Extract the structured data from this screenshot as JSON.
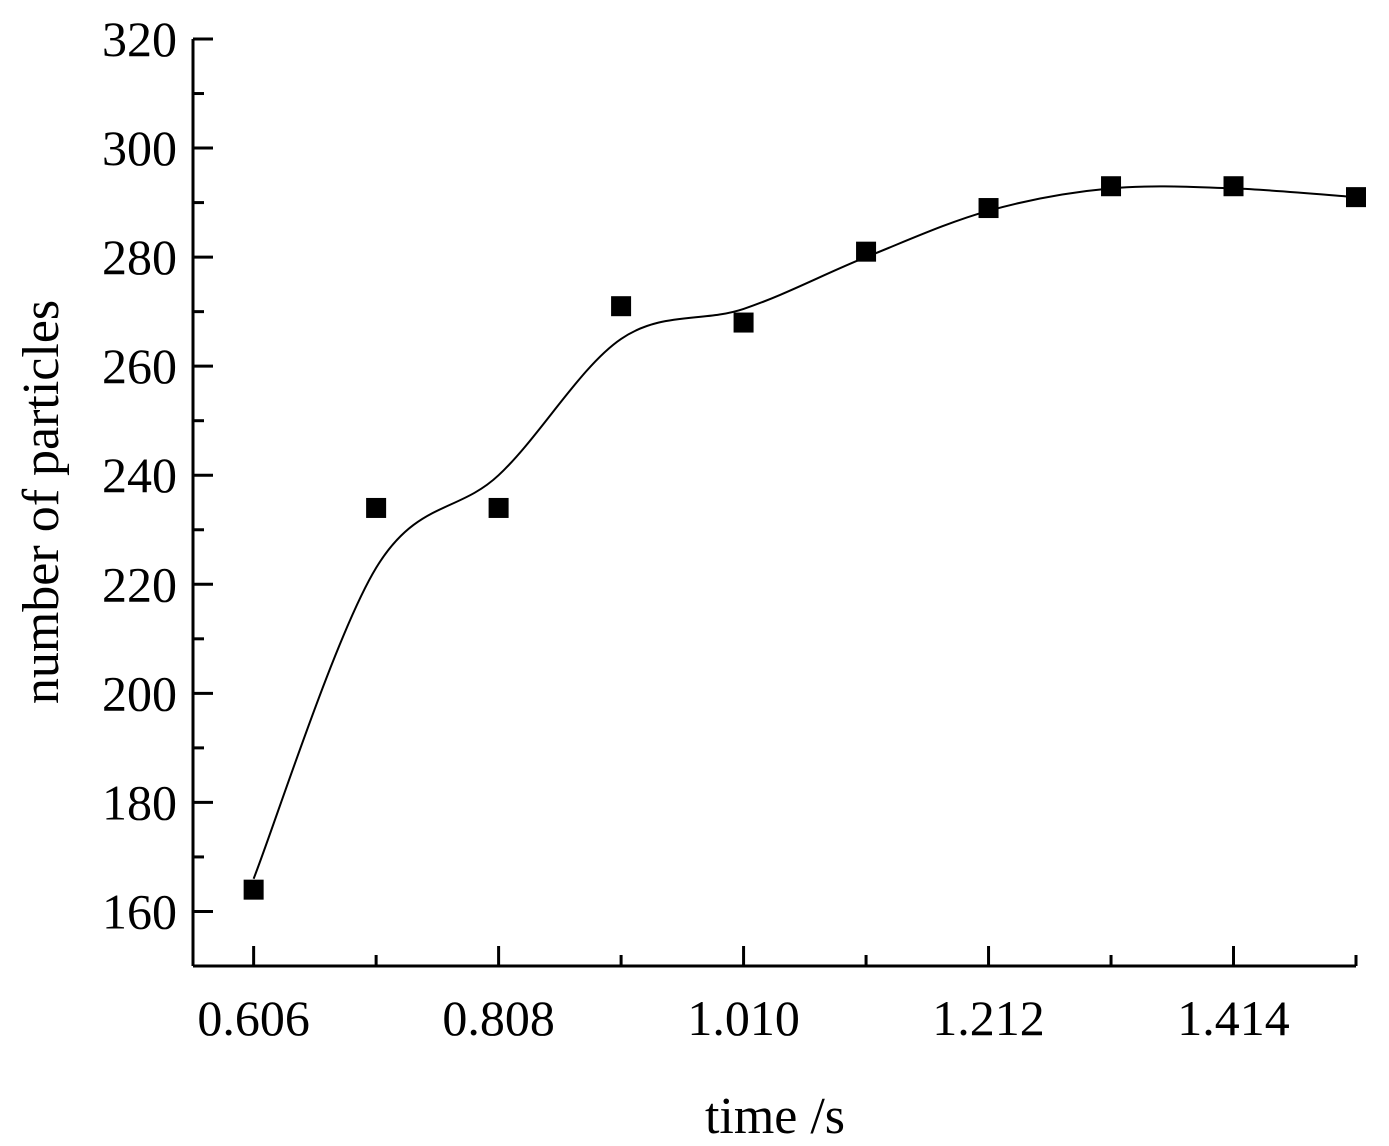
{
  "chart_data": {
    "type": "scatter",
    "title": "",
    "xlabel": "time /s",
    "ylabel": "number of particles",
    "xlim": [
      0.556,
      1.515
    ],
    "ylim": [
      150,
      320
    ],
    "xticks": [
      0.606,
      0.808,
      1.01,
      1.212,
      1.414
    ],
    "xtick_labels": [
      "0.606",
      "0.808",
      "1.010",
      "1.212",
      "1.414"
    ],
    "xminor_ticks": [
      0.707,
      0.909,
      1.111,
      1.313,
      1.515
    ],
    "yticks": [
      160,
      180,
      200,
      220,
      240,
      260,
      280,
      300,
      320
    ],
    "ytick_labels": [
      "160",
      "180",
      "200",
      "220",
      "240",
      "260",
      "280",
      "300",
      "320"
    ],
    "yminor_ticks": [
      150,
      170,
      190,
      210,
      230,
      250,
      270,
      290,
      310
    ],
    "grid": false,
    "legend": "none",
    "series": [
      {
        "marker": "square",
        "color": "#000000",
        "x": [
          0.606,
          0.707,
          0.808,
          0.909,
          1.01,
          1.111,
          1.212,
          1.313,
          1.414,
          1.515
        ],
        "y": [
          164,
          234,
          234,
          271,
          268,
          281,
          289,
          293,
          293,
          291
        ]
      }
    ],
    "fit_curve": {
      "style": "smooth spline",
      "color": "#000000",
      "x": [
        0.606,
        0.707,
        0.808,
        0.909,
        1.01,
        1.111,
        1.212,
        1.313,
        1.414,
        1.515
      ],
      "y": [
        166,
        223,
        240,
        265,
        270.5,
        280,
        288.5,
        292.6,
        292.6,
        291
      ]
    }
  }
}
